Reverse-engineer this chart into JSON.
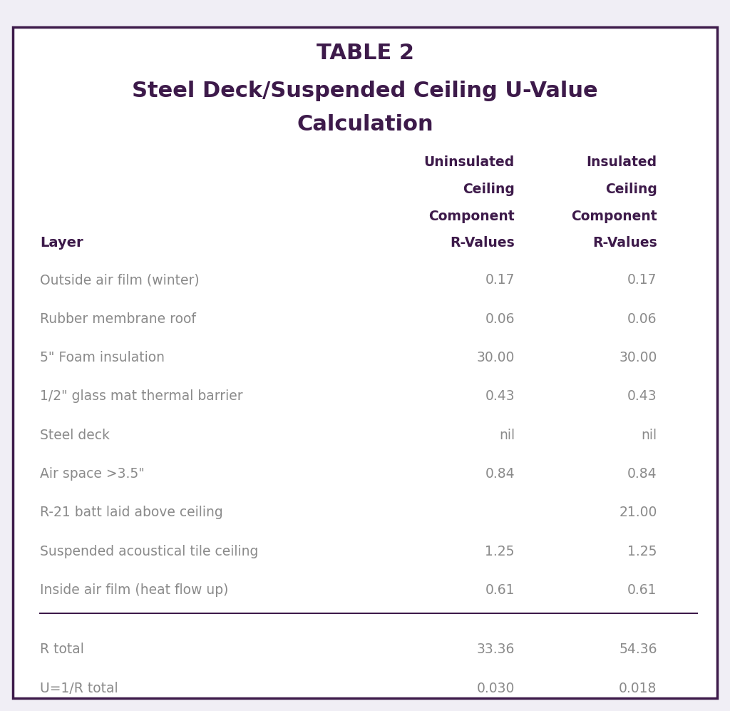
{
  "title_line1": "TABLE 2",
  "title_line2": "Steel Deck/Suspended Ceiling U-Value",
  "title_line3": "Calculation",
  "title_color": "#3d1a4a",
  "header_col1": "Uninsulated\nCeiling\nComponent\nR-Values",
  "header_col2": "Insulated\nCeiling\nComponent\nR-Values",
  "col_header_color": "#3d1a4a",
  "layer_header": "Layer",
  "rows": [
    {
      "layer": "Outside air film (winter)",
      "uninsu": "0.17",
      "insu": "0.17"
    },
    {
      "layer": "Rubber membrane roof",
      "uninsu": "0.06",
      "insu": "0.06"
    },
    {
      "layer": "5\" Foam insulation",
      "uninsu": "30.00",
      "insu": "30.00"
    },
    {
      "layer": "1/2\" glass mat thermal barrier",
      "uninsu": "0.43",
      "insu": "0.43"
    },
    {
      "layer": "Steel deck",
      "uninsu": "nil",
      "insu": "nil"
    },
    {
      "layer": "Air space >3.5\"",
      "uninsu": "0.84",
      "insu": "0.84"
    },
    {
      "layer": "R-21 batt laid above ceiling",
      "uninsu": "",
      "insu": "21.00"
    },
    {
      "layer": "Suspended acoustical tile ceiling",
      "uninsu": "1.25",
      "insu": "1.25"
    },
    {
      "layer": "Inside air film (heat flow up)",
      "uninsu": "0.61",
      "insu": "0.61"
    }
  ],
  "totals": [
    {
      "label": "R total",
      "uninsu": "33.36",
      "insu": "54.36"
    },
    {
      "label": "U=1/R total",
      "uninsu": "0.030",
      "insu": "0.018"
    }
  ],
  "data_color": "#8a8a8a",
  "border_color": "#3d1a4a",
  "background_color": "#ffffff",
  "fig_bg_color": "#f0eef5"
}
